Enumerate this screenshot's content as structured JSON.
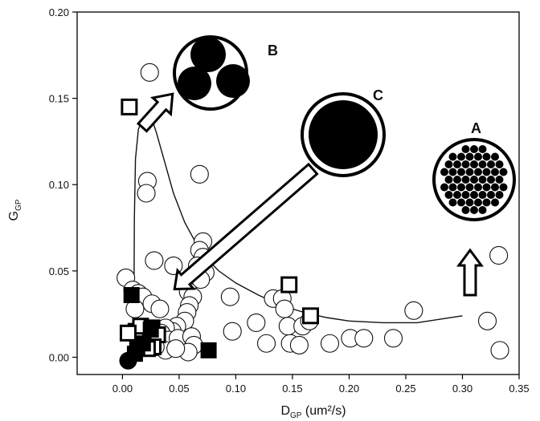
{
  "chart_data": {
    "type": "scatter",
    "title": "",
    "xlabel": {
      "main": "D",
      "sub": "GP",
      "unit": " (um²/s)"
    },
    "ylabel": {
      "main": "G",
      "sub": "GP"
    },
    "xlim": [
      -0.04,
      0.35
    ],
    "ylim": [
      -0.01,
      0.2
    ],
    "xticks": [
      "0.00",
      "0.05",
      "0.10",
      "0.15",
      "0.20",
      "0.25",
      "0.30",
      "0.35"
    ],
    "yticks": [
      "0.00",
      "0.05",
      "0.10",
      "0.15",
      "0.20"
    ],
    "grid": false,
    "series": [
      {
        "marker": "open-circle",
        "points": [
          [
            0.024,
            0.165
          ],
          [
            0.022,
            0.102
          ],
          [
            0.021,
            0.095
          ],
          [
            0.068,
            0.106
          ],
          [
            0.071,
            0.067
          ],
          [
            0.068,
            0.062
          ],
          [
            0.071,
            0.058
          ],
          [
            0.066,
            0.053
          ],
          [
            0.073,
            0.049
          ],
          [
            0.069,
            0.045
          ],
          [
            0.028,
            0.056
          ],
          [
            0.045,
            0.053
          ],
          [
            0.003,
            0.046
          ],
          [
            0.009,
            0.039
          ],
          [
            0.014,
            0.037
          ],
          [
            0.018,
            0.035
          ],
          [
            0.026,
            0.031
          ],
          [
            0.033,
            0.028
          ],
          [
            0.011,
            0.028
          ],
          [
            0.058,
            0.038
          ],
          [
            0.062,
            0.035
          ],
          [
            0.059,
            0.03
          ],
          [
            0.057,
            0.026
          ],
          [
            0.055,
            0.021
          ],
          [
            0.048,
            0.018
          ],
          [
            0.044,
            0.015
          ],
          [
            0.038,
            0.017
          ],
          [
            0.034,
            0.014
          ],
          [
            0.031,
            0.012
          ],
          [
            0.041,
            0.01
          ],
          [
            0.049,
            0.011
          ],
          [
            0.061,
            0.012
          ],
          [
            0.063,
            0.007
          ],
          [
            0.058,
            0.003
          ],
          [
            0.038,
            0.004
          ],
          [
            0.029,
            0.006
          ],
          [
            0.047,
            0.005
          ],
          [
            0.095,
            0.035
          ],
          [
            0.097,
            0.015
          ],
          [
            0.118,
            0.02
          ],
          [
            0.127,
            0.008
          ],
          [
            0.133,
            0.034
          ],
          [
            0.141,
            0.034
          ],
          [
            0.143,
            0.028
          ],
          [
            0.146,
            0.018
          ],
          [
            0.148,
            0.008
          ],
          [
            0.156,
            0.007
          ],
          [
            0.159,
            0.018
          ],
          [
            0.165,
            0.021
          ],
          [
            0.183,
            0.008
          ],
          [
            0.201,
            0.011
          ],
          [
            0.213,
            0.011
          ],
          [
            0.239,
            0.011
          ],
          [
            0.257,
            0.027
          ],
          [
            0.322,
            0.021
          ],
          [
            0.332,
            0.059
          ],
          [
            0.333,
            0.004
          ]
        ]
      },
      {
        "marker": "open-square",
        "points": [
          [
            0.006,
            0.145
          ],
          [
            0.147,
            0.042
          ],
          [
            0.166,
            0.024
          ],
          [
            0.012,
            0.015
          ],
          [
            0.016,
            0.018
          ],
          [
            0.026,
            0.017
          ],
          [
            0.031,
            0.013
          ],
          [
            0.027,
            0.006
          ],
          [
            0.022,
            0.005
          ],
          [
            0.005,
            0.014
          ]
        ]
      },
      {
        "marker": "filled-square",
        "points": [
          [
            0.008,
            0.036
          ],
          [
            0.025,
            0.016
          ],
          [
            0.018,
            0.008
          ],
          [
            0.013,
            0.005
          ],
          [
            0.076,
            0.004
          ],
          [
            0.011,
            0.002
          ]
        ]
      },
      {
        "marker": "filled-circle",
        "points": [
          [
            0.005,
            -0.002
          ]
        ]
      }
    ],
    "fit_curve": [
      [
        0.01,
        0.005
      ],
      [
        0.0102,
        0.04
      ],
      [
        0.0105,
        0.08
      ],
      [
        0.0115,
        0.115
      ],
      [
        0.014,
        0.132
      ],
      [
        0.018,
        0.139
      ],
      [
        0.022,
        0.141
      ],
      [
        0.026,
        0.138
      ],
      [
        0.03,
        0.13
      ],
      [
        0.036,
        0.116
      ],
      [
        0.045,
        0.095
      ],
      [
        0.055,
        0.078
      ],
      [
        0.07,
        0.06
      ],
      [
        0.085,
        0.05
      ],
      [
        0.1,
        0.043
      ],
      [
        0.12,
        0.036
      ],
      [
        0.14,
        0.03
      ],
      [
        0.16,
        0.026
      ],
      [
        0.18,
        0.023
      ],
      [
        0.2,
        0.021
      ],
      [
        0.23,
        0.02
      ],
      [
        0.26,
        0.02
      ],
      [
        0.3,
        0.024
      ]
    ],
    "annotations": {
      "labels": [
        "A",
        "B",
        "C"
      ]
    }
  }
}
